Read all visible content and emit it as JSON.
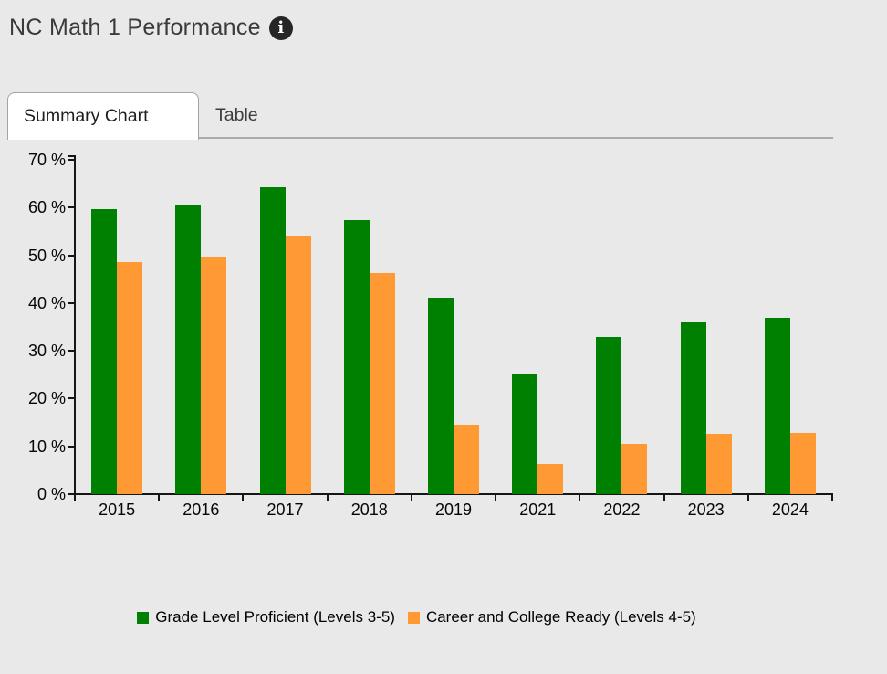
{
  "header": {
    "title": "NC Math 1 Performance"
  },
  "icons": {
    "info_glyph": "i"
  },
  "tabs": [
    {
      "label": "Summary Chart",
      "active": true
    },
    {
      "label": "Table",
      "active": false
    }
  ],
  "colors": {
    "background": "#e9e9e9",
    "green": "#008000",
    "orange": "#FF9933",
    "axis": "#161616",
    "tab_rule": "#ababab"
  },
  "chart_data": {
    "type": "bar",
    "title": "NC Math 1 Performance",
    "categories": [
      "2015",
      "2016",
      "2017",
      "2018",
      "2019",
      "2021",
      "2022",
      "2023",
      "2024"
    ],
    "series": [
      {
        "name": "Grade Level Proficient (Levels 3-5)",
        "color": "#008000",
        "values": [
          59.6,
          60.4,
          64.2,
          57.3,
          41.2,
          25.0,
          32.9,
          35.9,
          36.9
        ]
      },
      {
        "name": "Career and College Ready (Levels 4-5)",
        "color": "#FF9933",
        "values": [
          48.6,
          49.7,
          54.1,
          46.3,
          14.6,
          6.3,
          10.6,
          12.7,
          12.9
        ]
      }
    ],
    "xlabel": "",
    "ylabel": "",
    "ylim": [
      0,
      70
    ],
    "yticks": [
      0,
      10,
      20,
      30,
      40,
      50,
      60,
      70
    ],
    "ytick_format": "{v} %",
    "grid": false,
    "legend_position": "bottom"
  }
}
